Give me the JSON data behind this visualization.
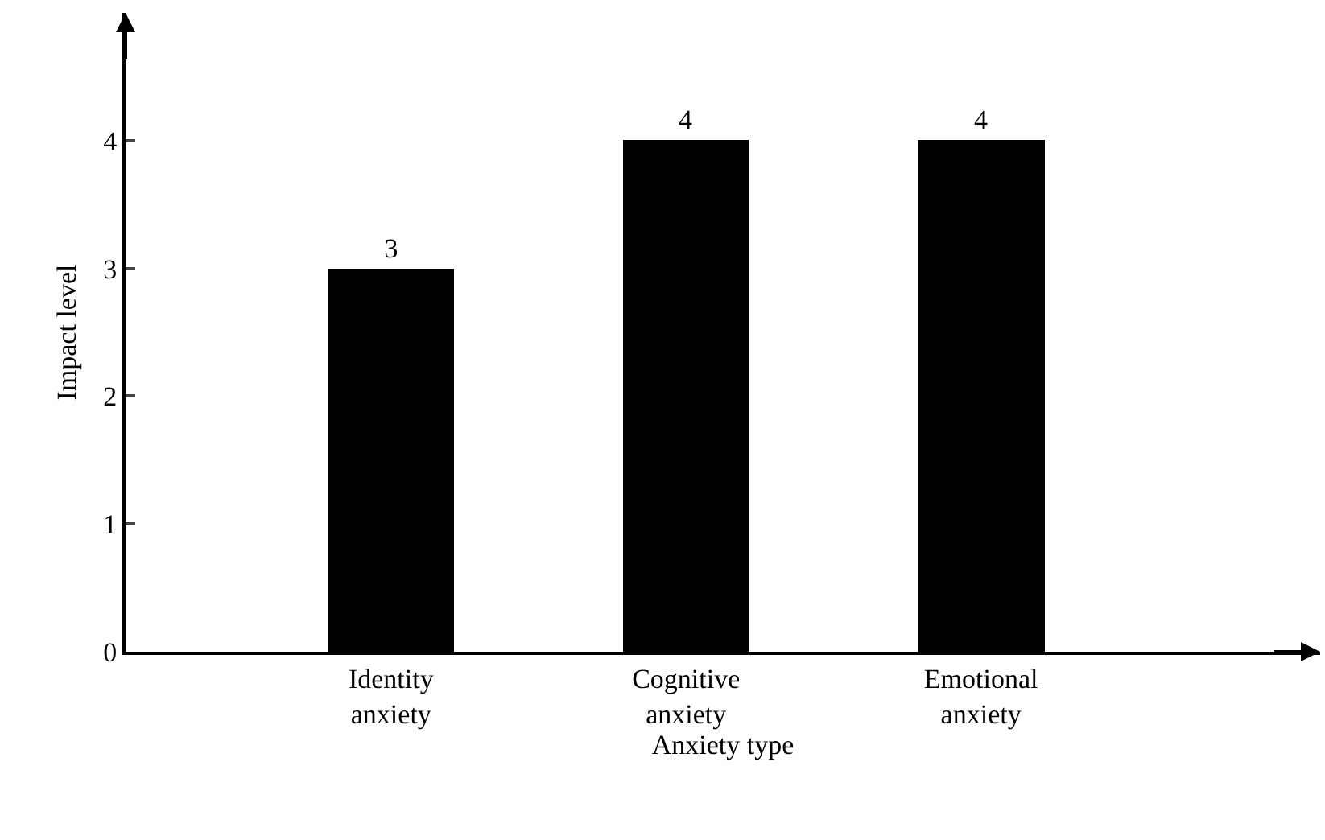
{
  "chart_data": {
    "type": "bar",
    "xlabel": "Anxiety type",
    "ylabel": "Impact level",
    "categories": [
      "Identity anxiety",
      "Cognitive anxiety",
      "Emotional anxiety"
    ],
    "values": [
      3,
      4,
      4
    ],
    "color": "#000000",
    "ylim": [
      0,
      5
    ],
    "yticks": [
      0,
      1,
      2,
      3,
      4
    ],
    "legend": false,
    "data_labels": true
  }
}
